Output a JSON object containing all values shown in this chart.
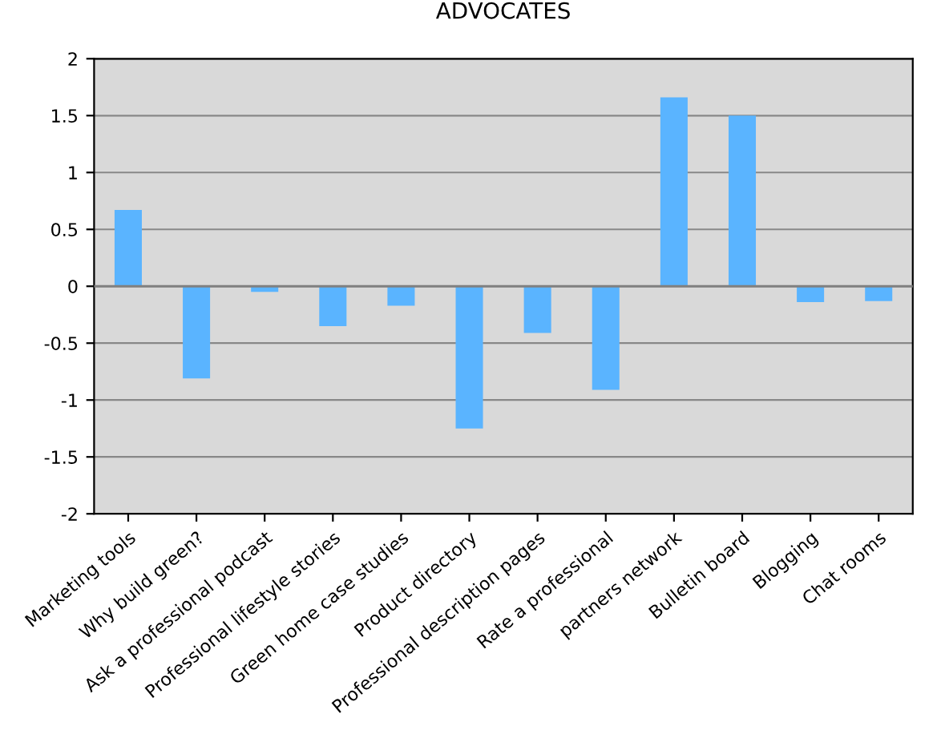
{
  "chart_data": {
    "type": "bar",
    "title": "ADVOCATES",
    "categories": [
      "Marketing tools",
      "Why build green?",
      "Ask a professional podcast",
      "Professional lifestyle stories",
      "Green home case studies",
      "Product directory",
      "Professional description pages",
      "Rate a professional",
      "partners network",
      "Bulletin board",
      "Blogging",
      "Chat rooms"
    ],
    "values": [
      0.67,
      -0.81,
      -0.05,
      -0.35,
      -0.17,
      -1.25,
      -0.41,
      -0.91,
      1.66,
      1.5,
      -0.14,
      -0.13
    ],
    "color": "#5ab4ff",
    "ylim": [
      -2,
      2
    ],
    "yticks": [
      -2,
      -1.5,
      -1,
      -0.5,
      0,
      0.5,
      1,
      1.5,
      2
    ],
    "grid": "y"
  }
}
